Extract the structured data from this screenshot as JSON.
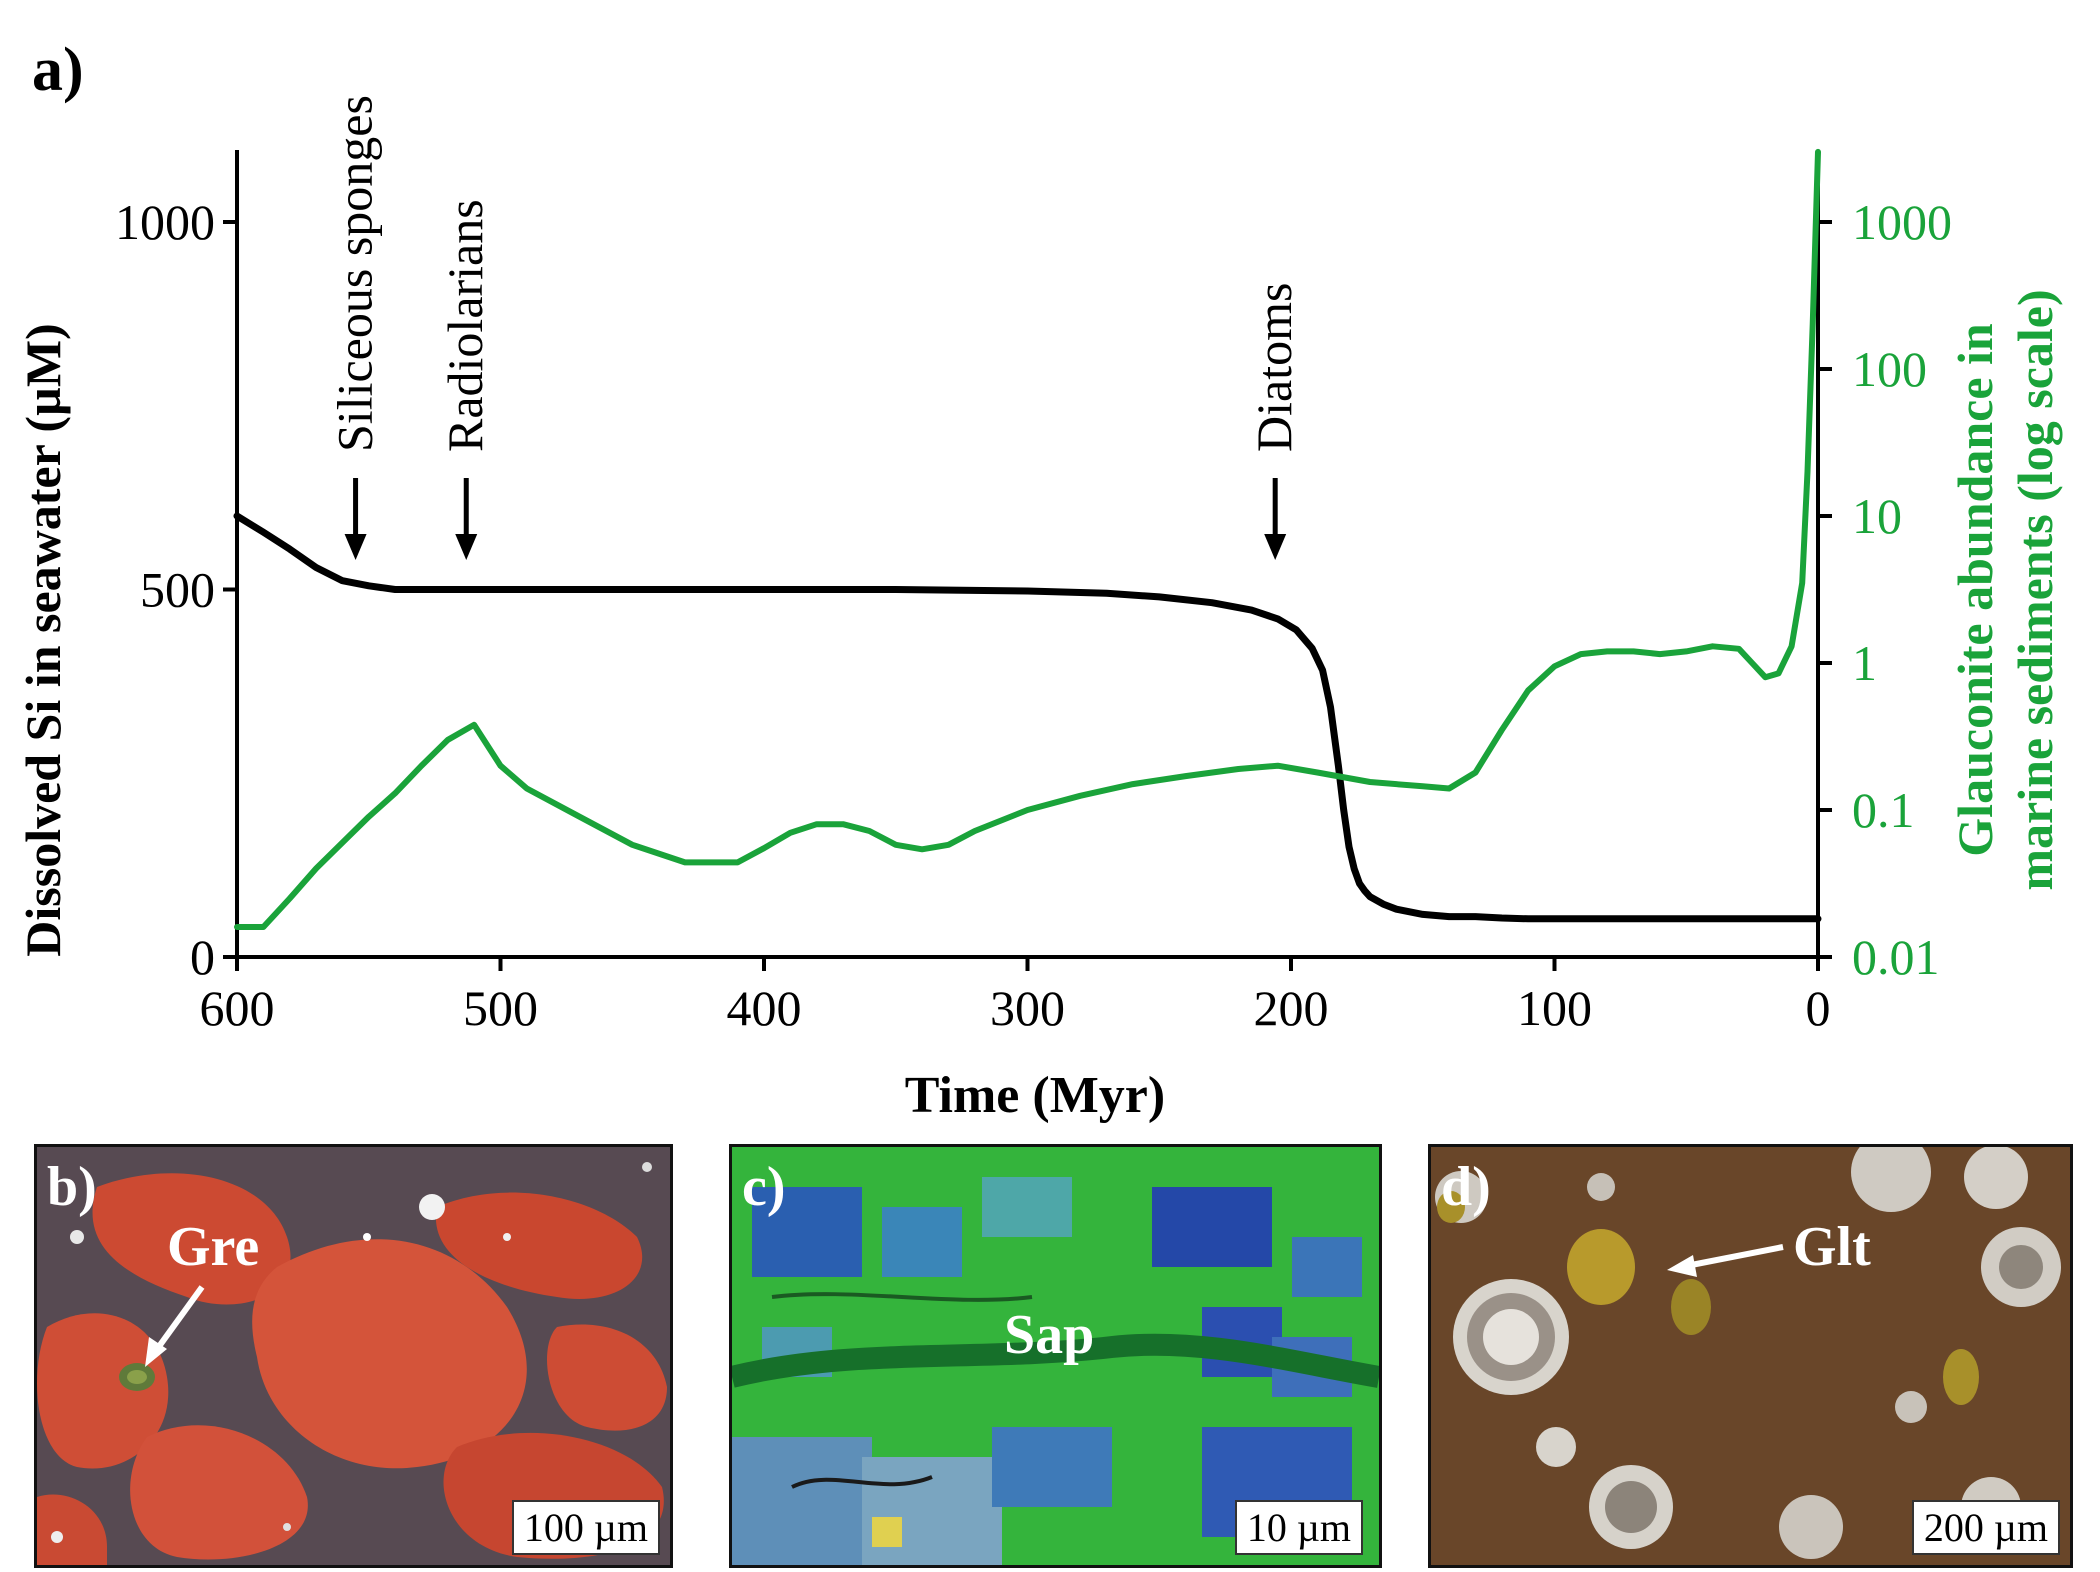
{
  "panel_a": {
    "letter": "a)"
  },
  "panels": {
    "b": {
      "letter": "b)",
      "label": "Gre",
      "scale": "100 µm"
    },
    "c": {
      "letter": "c)",
      "label": "Sap",
      "scale": "10 µm"
    },
    "d": {
      "letter": "d)",
      "label": "Glt",
      "scale": "200 µm"
    }
  },
  "colors": {
    "si_line": "#000000",
    "glauconite_line": "#1aa33a",
    "right_axis_text": "#1aa33a"
  },
  "chart_data": {
    "type": "line",
    "xlabel": "Time (Myr)",
    "ylabel": "Dissolved Si in seawater (µM)",
    "y2label_line1": "Glauconite abundance in",
    "y2label_line2": "marine sediments (log scale)",
    "xlim": [
      600,
      0
    ],
    "xticks": [
      600,
      500,
      400,
      300,
      200,
      100,
      0
    ],
    "xtick_labels": [
      "600",
      "500",
      "400",
      "300",
      "200",
      "100",
      "0"
    ],
    "ylim": [
      0,
      1000
    ],
    "yticks": [
      0,
      500,
      1000
    ],
    "ytick_labels": [
      "0",
      "500",
      "1000"
    ],
    "y2lim": [
      0.01,
      1000
    ],
    "y2_scale": "log",
    "y2ticks": [
      0.01,
      0.1,
      1,
      10,
      100,
      1000
    ],
    "y2tick_labels": [
      "0.01",
      "0.1",
      "1",
      "10",
      "100",
      "1000"
    ],
    "annotations": [
      {
        "text": "Siliceous sponges",
        "x": 555
      },
      {
        "text": "Radiolarians",
        "x": 513
      },
      {
        "text": "Diatoms",
        "x": 206
      }
    ],
    "series": [
      {
        "axis": "left",
        "x": [
          600,
          590,
          580,
          570,
          560,
          550,
          540,
          520,
          500,
          450,
          400,
          350,
          300,
          270,
          250,
          230,
          215,
          205,
          198,
          192,
          188,
          185,
          182,
          180,
          178,
          176,
          174,
          172,
          170,
          165,
          160,
          150,
          140,
          130,
          120,
          110,
          100,
          50,
          0
        ],
        "y": [
          600,
          578,
          555,
          530,
          512,
          505,
          500,
          500,
          500,
          500,
          500,
          500,
          498,
          495,
          490,
          482,
          472,
          460,
          445,
          420,
          390,
          340,
          260,
          200,
          150,
          120,
          100,
          90,
          82,
          72,
          65,
          58,
          55,
          55,
          53,
          52,
          52,
          52,
          52
        ]
      },
      {
        "axis": "right",
        "x": [
          600,
          590,
          580,
          570,
          560,
          550,
          540,
          530,
          520,
          510,
          500,
          490,
          470,
          450,
          430,
          410,
          400,
          390,
          380,
          370,
          360,
          350,
          340,
          330,
          320,
          300,
          280,
          260,
          240,
          220,
          205,
          190,
          170,
          150,
          140,
          130,
          120,
          110,
          100,
          90,
          80,
          70,
          60,
          50,
          40,
          30,
          25,
          20,
          15,
          10,
          6,
          4,
          2,
          0
        ],
        "y": [
          0.016,
          0.016,
          0.025,
          0.04,
          0.06,
          0.09,
          0.13,
          0.2,
          0.3,
          0.38,
          0.2,
          0.14,
          0.09,
          0.058,
          0.044,
          0.044,
          0.055,
          0.07,
          0.08,
          0.08,
          0.072,
          0.058,
          0.054,
          0.058,
          0.072,
          0.1,
          0.125,
          0.15,
          0.17,
          0.19,
          0.2,
          0.18,
          0.155,
          0.145,
          0.14,
          0.18,
          0.35,
          0.65,
          0.95,
          1.15,
          1.2,
          1.2,
          1.15,
          1.2,
          1.3,
          1.25,
          1.0,
          0.8,
          0.85,
          1.3,
          3.5,
          20,
          200,
          3000
        ]
      }
    ]
  }
}
